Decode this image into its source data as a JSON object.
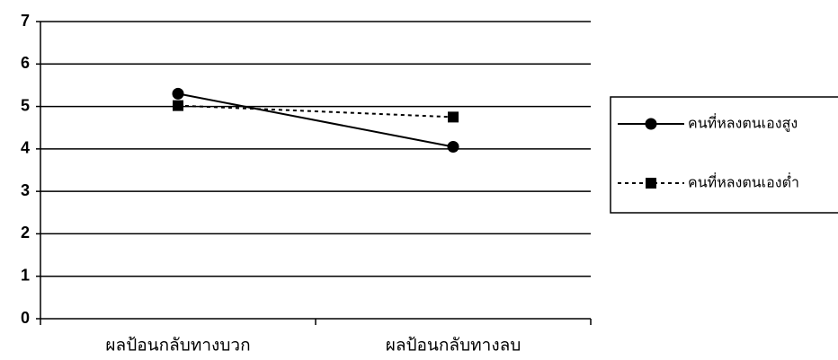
{
  "chart_data": {
    "type": "line",
    "categories": [
      "ผลป้อนกลับทางบวก",
      "ผลป้อนกลับทางลบ"
    ],
    "series": [
      {
        "name": "คนที่หลงตนเองสูง",
        "color": "#000000",
        "line_style": "solid",
        "marker": "circle",
        "values": [
          5.3,
          4.05
        ]
      },
      {
        "name": "คนที่หลงตนเองต่ำ",
        "color": "#000000",
        "line_style": "dotted",
        "marker": "square",
        "values": [
          5.02,
          4.75
        ]
      }
    ],
    "ylim": [
      0,
      7
    ],
    "yticks": [
      0,
      1,
      2,
      3,
      4,
      5,
      6,
      7
    ],
    "grid": true,
    "legend": "right"
  }
}
